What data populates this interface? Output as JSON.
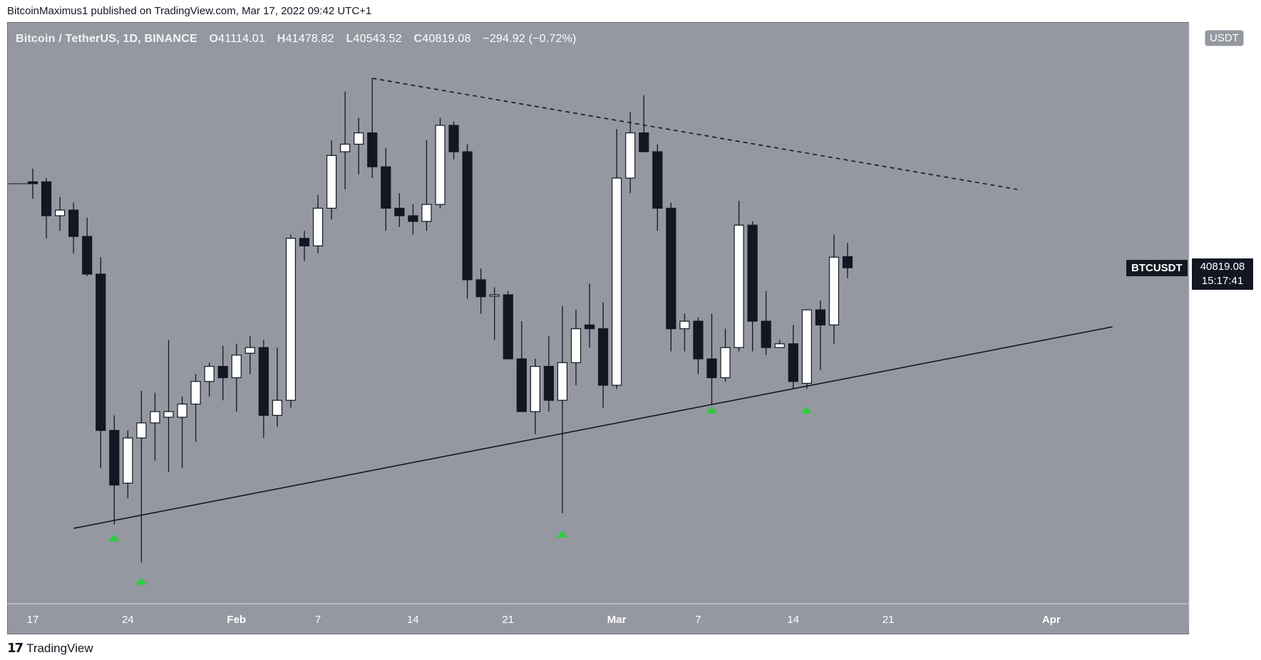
{
  "header": {
    "published_by": "BitcoinMaximus1 published on TradingView.com, Mar 17, 2022 09:42 UTC+1"
  },
  "legend": {
    "symbol_line": "Bitcoin / TetherUS, 1D, BINANCE",
    "open_key": "O",
    "open_val": "41114.01",
    "high_key": "H",
    "high_val": "41478.82",
    "low_key": "L",
    "low_val": "40543.52",
    "close_key": "C",
    "close_val": "40819.08",
    "change": "−294.92 (−0.72%)"
  },
  "currency": "USDT",
  "last_price": {
    "symbol": "BTCUSDT",
    "price": "40819.08",
    "countdown": "15:17:41"
  },
  "footer": {
    "brand": "TradingView"
  },
  "colors": {
    "background": "#9598a1",
    "bull_body": "#ffffff",
    "bear_body": "#131722",
    "wick": "#131722",
    "marker": "#2ecc40",
    "trendline": "#131722"
  },
  "chart_data": {
    "type": "candlestick",
    "title": "Bitcoin / TetherUS, 1D, BINANCE",
    "yaxis": {
      "ylim": [
        32000,
        47000
      ],
      "ticks": [
        "32000.00",
        "33000.00",
        "34000.00",
        "35000.00",
        "36000.00",
        "37000.00",
        "38000.00",
        "39000.00",
        "40000.00",
        "41000.00",
        "42000.00",
        "43000.00",
        "44000.00",
        "45000.00",
        "46000.00"
      ],
      "partial_top_tick": "47000.00"
    },
    "xaxis": {
      "tick_labels": [
        "17",
        "24",
        "Feb",
        "7",
        "14",
        "21",
        "Mar",
        "7",
        "14",
        "21",
        "Apr"
      ],
      "tick_day_index": [
        0,
        7,
        15,
        21,
        28,
        35,
        43,
        49,
        56,
        63,
        75
      ]
    },
    "candles": [
      {
        "d": "Jan 17",
        "o": 43100,
        "h": 43450,
        "l": 42650,
        "c": 43050
      },
      {
        "d": "Jan 18",
        "o": 43100,
        "h": 43200,
        "l": 41600,
        "c": 42200
      },
      {
        "d": "Jan 19",
        "o": 42200,
        "h": 42700,
        "l": 41800,
        "c": 42350
      },
      {
        "d": "Jan 20",
        "o": 42350,
        "h": 42550,
        "l": 41200,
        "c": 41650
      },
      {
        "d": "Jan 21",
        "o": 41650,
        "h": 42150,
        "l": 40600,
        "c": 40650
      },
      {
        "d": "Jan 22",
        "o": 40650,
        "h": 41100,
        "l": 35500,
        "c": 36500
      },
      {
        "d": "Jan 23",
        "o": 36500,
        "h": 36900,
        "l": 34000,
        "c": 35050
      },
      {
        "d": "Jan 24",
        "o": 35100,
        "h": 36500,
        "l": 34700,
        "c": 36300
      },
      {
        "d": "Jan 25",
        "o": 36300,
        "h": 37550,
        "l": 33000,
        "c": 36700
      },
      {
        "d": "Jan 26",
        "o": 36700,
        "h": 37500,
        "l": 35700,
        "c": 37000
      },
      {
        "d": "Jan 27",
        "o": 36850,
        "h": 38900,
        "l": 35400,
        "c": 37000
      },
      {
        "d": "Jan 28",
        "o": 36850,
        "h": 37400,
        "l": 35500,
        "c": 37200
      },
      {
        "d": "Jan 29",
        "o": 37200,
        "h": 38000,
        "l": 36200,
        "c": 37800
      },
      {
        "d": "Jan 30",
        "o": 37800,
        "h": 38300,
        "l": 37400,
        "c": 38200
      },
      {
        "d": "Jan 31",
        "o": 38200,
        "h": 38750,
        "l": 37300,
        "c": 37900
      },
      {
        "d": "Feb 1",
        "o": 37900,
        "h": 38800,
        "l": 37000,
        "c": 38500
      },
      {
        "d": "Feb 2",
        "o": 38550,
        "h": 39000,
        "l": 38000,
        "c": 38700
      },
      {
        "d": "Feb 3",
        "o": 38700,
        "h": 38900,
        "l": 36300,
        "c": 36900
      },
      {
        "d": "Feb 4",
        "o": 36900,
        "h": 38700,
        "l": 36600,
        "c": 37300
      },
      {
        "d": "Feb 5",
        "o": 37300,
        "h": 41700,
        "l": 37100,
        "c": 41600
      },
      {
        "d": "Feb 6",
        "o": 41600,
        "h": 41800,
        "l": 41000,
        "c": 41400
      },
      {
        "d": "Feb 7",
        "o": 41400,
        "h": 42750,
        "l": 41200,
        "c": 42400
      },
      {
        "d": "Feb 8",
        "o": 42400,
        "h": 44200,
        "l": 42100,
        "c": 43800
      },
      {
        "d": "Feb 9",
        "o": 43900,
        "h": 45500,
        "l": 42900,
        "c": 44100
      },
      {
        "d": "Feb 10",
        "o": 44100,
        "h": 44800,
        "l": 43300,
        "c": 44400
      },
      {
        "d": "Feb 11",
        "o": 44400,
        "h": 45850,
        "l": 43200,
        "c": 43500
      },
      {
        "d": "Feb 12",
        "o": 43500,
        "h": 44000,
        "l": 41800,
        "c": 42400
      },
      {
        "d": "Feb 13",
        "o": 42400,
        "h": 42800,
        "l": 41900,
        "c": 42200
      },
      {
        "d": "Feb 14",
        "o": 42200,
        "h": 42500,
        "l": 41700,
        "c": 42050
      },
      {
        "d": "Feb 15",
        "o": 42050,
        "h": 44200,
        "l": 41800,
        "c": 42500
      },
      {
        "d": "Feb 16",
        "o": 42500,
        "h": 44800,
        "l": 42400,
        "c": 44600
      },
      {
        "d": "Feb 17",
        "o": 44600,
        "h": 44700,
        "l": 43700,
        "c": 43900
      },
      {
        "d": "Feb 18",
        "o": 43900,
        "h": 44100,
        "l": 40000,
        "c": 40500
      },
      {
        "d": "Feb 19",
        "o": 40500,
        "h": 40800,
        "l": 39600,
        "c": 40050
      },
      {
        "d": "Feb 20",
        "o": 40100,
        "h": 40300,
        "l": 38900,
        "c": 40100
      },
      {
        "d": "Feb 21",
        "o": 40100,
        "h": 40200,
        "l": 38400,
        "c": 38400
      },
      {
        "d": "Feb 22",
        "o": 38400,
        "h": 39400,
        "l": 37000,
        "c": 37000
      },
      {
        "d": "Feb 23",
        "o": 37000,
        "h": 38400,
        "l": 36400,
        "c": 38200
      },
      {
        "d": "Feb 24",
        "o": 38200,
        "h": 39000,
        "l": 37000,
        "c": 37300
      },
      {
        "d": "Feb 25",
        "o": 37300,
        "h": 39800,
        "l": 34300,
        "c": 38300
      },
      {
        "d": "Feb 26",
        "o": 38300,
        "h": 39700,
        "l": 37700,
        "c": 39200
      },
      {
        "d": "Feb 27",
        "o": 39300,
        "h": 40400,
        "l": 38700,
        "c": 39200
      },
      {
        "d": "Feb 28",
        "o": 39200,
        "h": 39900,
        "l": 37100,
        "c": 37700
      },
      {
        "d": "Mar 1",
        "o": 37700,
        "h": 44500,
        "l": 37600,
        "c": 43200
      },
      {
        "d": "Mar 2",
        "o": 43200,
        "h": 44950,
        "l": 42800,
        "c": 44400
      },
      {
        "d": "Mar 3",
        "o": 44400,
        "h": 45400,
        "l": 43900,
        "c": 43900
      },
      {
        "d": "Mar 4",
        "o": 43900,
        "h": 44100,
        "l": 41800,
        "c": 42400
      },
      {
        "d": "Mar 5",
        "o": 42400,
        "h": 42550,
        "l": 38600,
        "c": 39200
      },
      {
        "d": "Mar 6",
        "o": 39200,
        "h": 39600,
        "l": 38600,
        "c": 39400
      },
      {
        "d": "Mar 7",
        "o": 39400,
        "h": 39500,
        "l": 38000,
        "c": 38400
      },
      {
        "d": "Mar 8",
        "o": 38400,
        "h": 39600,
        "l": 37200,
        "c": 37900
      },
      {
        "d": "Mar 9",
        "o": 37900,
        "h": 39200,
        "l": 37800,
        "c": 38700
      },
      {
        "d": "Mar 10",
        "o": 38700,
        "h": 42600,
        "l": 38600,
        "c": 41950
      },
      {
        "d": "Mar 11",
        "o": 41950,
        "h": 42050,
        "l": 38600,
        "c": 39400
      },
      {
        "d": "Mar 12",
        "o": 39400,
        "h": 40200,
        "l": 38500,
        "c": 38700
      },
      {
        "d": "Mar 13",
        "o": 38700,
        "h": 38900,
        "l": 38700,
        "c": 38800
      },
      {
        "d": "Mar 14",
        "o": 38800,
        "h": 39300,
        "l": 37600,
        "c": 37800
      },
      {
        "d": "Mar 15",
        "o": 37750,
        "h": 39700,
        "l": 37600,
        "c": 39700
      },
      {
        "d": "Mar 16",
        "o": 39700,
        "h": 39950,
        "l": 38100,
        "c": 39300
      },
      {
        "d": "Mar 17",
        "o": 39300,
        "h": 41700,
        "l": 38800,
        "c": 41100
      },
      {
        "d": "Mar 18",
        "o": 41114.01,
        "h": 41478.82,
        "l": 40543.52,
        "c": 40819.08
      }
    ],
    "trendlines": [
      {
        "name": "ascending support",
        "style": "solid",
        "from": {
          "day": 3,
          "price": 33900
        },
        "to": {
          "day": 79.5,
          "price": 39250
        }
      },
      {
        "name": "descending resistance",
        "style": "dashed",
        "from": {
          "day": 25,
          "price": 45850
        },
        "to": {
          "day": 72.5,
          "price": 42900
        }
      }
    ],
    "markers": [
      {
        "day": 6,
        "price": 33650
      },
      {
        "day": 8,
        "price": 32500
      },
      {
        "day": 39,
        "price": 33750
      },
      {
        "day": 50,
        "price": 37050
      },
      {
        "day": 57,
        "price": 37050
      }
    ]
  }
}
